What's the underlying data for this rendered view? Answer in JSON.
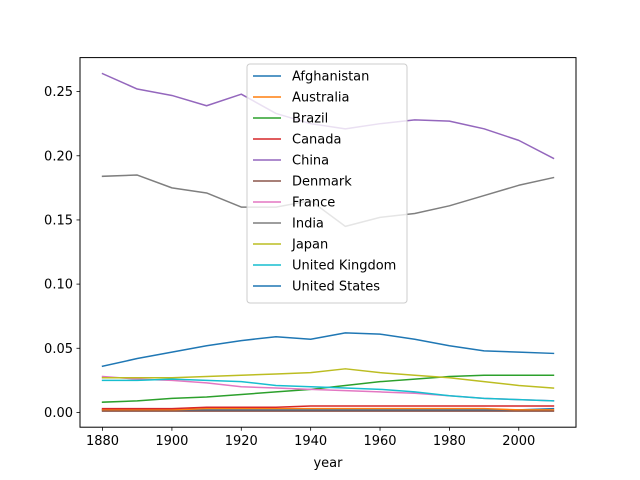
{
  "chart_data": {
    "type": "line",
    "title": "",
    "xlabel": "year",
    "ylabel": "",
    "xlim": [
      1873.5,
      2016.5
    ],
    "ylim": [
      -0.0115,
      0.2765
    ],
    "x_ticks": [
      "1880",
      "1900",
      "1920",
      "1940",
      "1960",
      "1980",
      "2000"
    ],
    "x_tick_values": [
      1880,
      1900,
      1920,
      1940,
      1960,
      1980,
      2000
    ],
    "y_ticks": [
      "0.00",
      "0.05",
      "0.10",
      "0.15",
      "0.20",
      "0.25"
    ],
    "y_tick_values": [
      0.0,
      0.05,
      0.1,
      0.15,
      0.2,
      0.25
    ],
    "grid": false,
    "legend_position": "upper center",
    "x": [
      1880,
      1890,
      1900,
      1910,
      1920,
      1930,
      1940,
      1950,
      1960,
      1970,
      1980,
      1990,
      2000,
      2010
    ],
    "series": [
      {
        "name": "Afghanistan",
        "color": "#1f77b4",
        "values": [
          0.002,
          0.002,
          0.002,
          0.002,
          0.002,
          0.002,
          0.002,
          0.002,
          0.002,
          0.002,
          0.002,
          0.002,
          0.002,
          0.003
        ]
      },
      {
        "name": "Australia",
        "color": "#ff7f0e",
        "values": [
          0.002,
          0.002,
          0.002,
          0.003,
          0.003,
          0.003,
          0.003,
          0.003,
          0.003,
          0.003,
          0.003,
          0.003,
          0.002,
          0.002
        ]
      },
      {
        "name": "Brazil",
        "color": "#2ca02c",
        "values": [
          0.008,
          0.009,
          0.011,
          0.012,
          0.014,
          0.016,
          0.018,
          0.021,
          0.024,
          0.026,
          0.028,
          0.029,
          0.029,
          0.029
        ]
      },
      {
        "name": "Canada",
        "color": "#d62728",
        "values": [
          0.003,
          0.003,
          0.003,
          0.004,
          0.004,
          0.004,
          0.005,
          0.005,
          0.005,
          0.005,
          0.005,
          0.005,
          0.005,
          0.005
        ]
      },
      {
        "name": "China",
        "color": "#9467bd",
        "values": [
          0.264,
          0.252,
          0.247,
          0.239,
          0.248,
          0.233,
          0.225,
          0.221,
          0.225,
          0.228,
          0.227,
          0.221,
          0.212,
          0.198
        ]
      },
      {
        "name": "Denmark",
        "color": "#8c564b",
        "values": [
          0.001,
          0.001,
          0.001,
          0.001,
          0.001,
          0.001,
          0.001,
          0.001,
          0.001,
          0.001,
          0.001,
          0.001,
          0.001,
          0.001
        ]
      },
      {
        "name": "France",
        "color": "#e377c2",
        "values": [
          0.028,
          0.026,
          0.025,
          0.023,
          0.02,
          0.019,
          0.018,
          0.017,
          0.016,
          0.015,
          0.013,
          0.011,
          0.01,
          0.009
        ]
      },
      {
        "name": "India",
        "color": "#7f7f7f",
        "values": [
          0.184,
          0.185,
          0.175,
          0.171,
          0.16,
          0.16,
          0.165,
          0.145,
          0.152,
          0.155,
          0.161,
          0.169,
          0.177,
          0.183
        ]
      },
      {
        "name": "Japan",
        "color": "#bcbd22",
        "values": [
          0.027,
          0.027,
          0.027,
          0.028,
          0.029,
          0.03,
          0.031,
          0.034,
          0.031,
          0.029,
          0.027,
          0.024,
          0.021,
          0.019
        ]
      },
      {
        "name": "United Kingdom",
        "color": "#17becf",
        "values": [
          0.025,
          0.025,
          0.026,
          0.025,
          0.024,
          0.021,
          0.02,
          0.019,
          0.018,
          0.016,
          0.013,
          0.011,
          0.01,
          0.009
        ]
      },
      {
        "name": "United States",
        "color": "#1f77b4",
        "values": [
          0.036,
          0.042,
          0.047,
          0.052,
          0.056,
          0.059,
          0.057,
          0.062,
          0.061,
          0.057,
          0.052,
          0.048,
          0.047,
          0.046
        ]
      }
    ]
  }
}
